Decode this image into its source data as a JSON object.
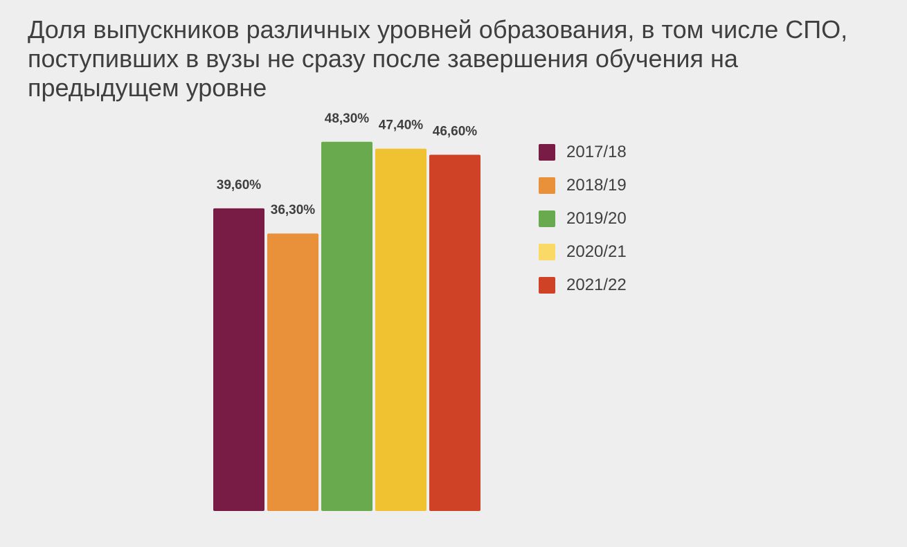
{
  "chart_data": {
    "type": "bar",
    "title": "Доля выпускников различных уровней образования, в том числе СПО, поступивших в вузы не сразу после завершения обучения на предыдущем уровне",
    "xlabel": "",
    "ylabel": "",
    "ylim": [
      0,
      50
    ],
    "grid": false,
    "legend_position": "right",
    "series": [
      {
        "name": "2017/18",
        "value": 39.6,
        "label": "39,60%",
        "color": "#781c45"
      },
      {
        "name": "2018/19",
        "value": 36.3,
        "label": "36,30%",
        "color": "#e8913a"
      },
      {
        "name": "2019/20",
        "value": 48.3,
        "label": "48,30%",
        "color": "#6aaa4e"
      },
      {
        "name": "2020/21",
        "value": 47.4,
        "label": "47,40%",
        "color": "#f0c232"
      },
      {
        "name": "2021/22",
        "value": 46.6,
        "label": "46,60%",
        "color": "#cf4225"
      }
    ],
    "legend_colors": [
      "#781c45",
      "#e8913a",
      "#6aaa4e",
      "#fbd966",
      "#cf4225"
    ]
  }
}
